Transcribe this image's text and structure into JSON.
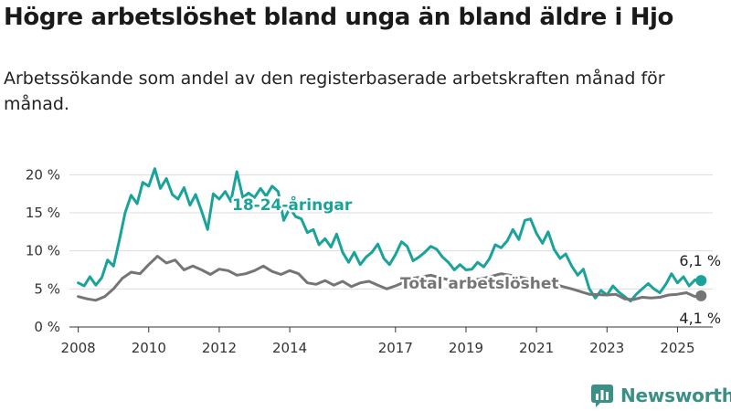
{
  "header": {
    "title": "Högre arbetslöshet bland unga än bland äldre i Hjo",
    "subtitle": "Arbetssökande som andel av den registerbaserade arbetskraften månad för månad."
  },
  "brand": {
    "name": "Newsworthy",
    "icon": "newsworthy-logo-icon"
  },
  "chart_data": {
    "type": "line",
    "title": "Högre arbetslöshet bland unga än bland äldre i Hjo",
    "ylim": [
      0,
      21
    ],
    "xlim": [
      2007.75,
      2026.0
    ],
    "y_ticks": [
      0,
      5,
      10,
      15,
      20
    ],
    "y_tick_labels": [
      "0 %",
      "5 %",
      "10 %",
      "15 %",
      "20 %"
    ],
    "x_ticks": [
      2008,
      2010,
      2012,
      2014,
      2017,
      2019,
      2021,
      2023,
      2025
    ],
    "x_tick_labels": [
      "2008",
      "2010",
      "2012",
      "2014",
      "2017",
      "2019",
      "2021",
      "2023",
      "2025"
    ],
    "grid": "horizontal",
    "series": [
      {
        "name": "18-24-åringar",
        "color": "#1aa39a",
        "end_label": "6,1 %",
        "points": [
          [
            2008.0,
            5.8
          ],
          [
            2008.17,
            5.4
          ],
          [
            2008.33,
            6.6
          ],
          [
            2008.5,
            5.5
          ],
          [
            2008.67,
            6.5
          ],
          [
            2008.83,
            8.8
          ],
          [
            2009.0,
            8.0
          ],
          [
            2009.17,
            11.5
          ],
          [
            2009.33,
            15.0
          ],
          [
            2009.5,
            17.3
          ],
          [
            2009.67,
            16.2
          ],
          [
            2009.83,
            19.0
          ],
          [
            2010.0,
            18.5
          ],
          [
            2010.17,
            20.8
          ],
          [
            2010.33,
            18.2
          ],
          [
            2010.5,
            19.5
          ],
          [
            2010.67,
            17.4
          ],
          [
            2010.83,
            16.8
          ],
          [
            2011.0,
            18.3
          ],
          [
            2011.17,
            16.0
          ],
          [
            2011.33,
            17.4
          ],
          [
            2011.5,
            15.2
          ],
          [
            2011.67,
            12.8
          ],
          [
            2011.83,
            17.5
          ],
          [
            2012.0,
            16.8
          ],
          [
            2012.17,
            17.8
          ],
          [
            2012.33,
            16.5
          ],
          [
            2012.5,
            20.4
          ],
          [
            2012.67,
            17.0
          ],
          [
            2012.83,
            17.6
          ],
          [
            2013.0,
            17.0
          ],
          [
            2013.17,
            18.2
          ],
          [
            2013.33,
            17.2
          ],
          [
            2013.5,
            18.5
          ],
          [
            2013.67,
            17.8
          ],
          [
            2013.83,
            14.0
          ],
          [
            2014.0,
            15.6
          ],
          [
            2014.17,
            14.5
          ],
          [
            2014.33,
            14.2
          ],
          [
            2014.5,
            12.4
          ],
          [
            2014.67,
            12.8
          ],
          [
            2014.83,
            10.8
          ],
          [
            2015.0,
            11.6
          ],
          [
            2015.17,
            10.5
          ],
          [
            2015.33,
            12.2
          ],
          [
            2015.5,
            9.8
          ],
          [
            2015.67,
            8.5
          ],
          [
            2015.83,
            9.8
          ],
          [
            2016.0,
            8.2
          ],
          [
            2016.17,
            9.2
          ],
          [
            2016.33,
            9.8
          ],
          [
            2016.5,
            10.9
          ],
          [
            2016.67,
            9.0
          ],
          [
            2016.83,
            8.2
          ],
          [
            2017.0,
            9.5
          ],
          [
            2017.17,
            11.2
          ],
          [
            2017.33,
            10.6
          ],
          [
            2017.5,
            8.7
          ],
          [
            2017.67,
            9.2
          ],
          [
            2017.83,
            9.8
          ],
          [
            2018.0,
            10.6
          ],
          [
            2018.17,
            10.2
          ],
          [
            2018.33,
            9.2
          ],
          [
            2018.5,
            8.5
          ],
          [
            2018.67,
            7.5
          ],
          [
            2018.83,
            8.2
          ],
          [
            2019.0,
            7.5
          ],
          [
            2019.17,
            7.6
          ],
          [
            2019.33,
            8.5
          ],
          [
            2019.5,
            7.9
          ],
          [
            2019.67,
            9.0
          ],
          [
            2019.83,
            10.8
          ],
          [
            2020.0,
            10.4
          ],
          [
            2020.17,
            11.3
          ],
          [
            2020.33,
            12.8
          ],
          [
            2020.5,
            11.5
          ],
          [
            2020.67,
            14.0
          ],
          [
            2020.83,
            14.2
          ],
          [
            2021.0,
            12.3
          ],
          [
            2021.17,
            11.0
          ],
          [
            2021.33,
            12.5
          ],
          [
            2021.5,
            10.2
          ],
          [
            2021.67,
            9.0
          ],
          [
            2021.83,
            9.6
          ],
          [
            2022.0,
            8.0
          ],
          [
            2022.17,
            6.8
          ],
          [
            2022.33,
            7.6
          ],
          [
            2022.5,
            5.0
          ],
          [
            2022.67,
            3.8
          ],
          [
            2022.83,
            4.8
          ],
          [
            2023.0,
            4.2
          ],
          [
            2023.17,
            5.4
          ],
          [
            2023.33,
            4.6
          ],
          [
            2023.5,
            4.0
          ],
          [
            2023.67,
            3.4
          ],
          [
            2023.83,
            4.3
          ],
          [
            2024.0,
            5.0
          ],
          [
            2024.17,
            5.7
          ],
          [
            2024.33,
            5.0
          ],
          [
            2024.5,
            4.5
          ],
          [
            2024.67,
            5.6
          ],
          [
            2024.83,
            7.0
          ],
          [
            2025.0,
            5.8
          ],
          [
            2025.17,
            6.6
          ],
          [
            2025.33,
            5.4
          ],
          [
            2025.5,
            6.2
          ],
          [
            2025.67,
            6.1
          ]
        ]
      },
      {
        "name": "Total arbetslöshet",
        "color": "#757575",
        "end_label": "4,1 %",
        "points": [
          [
            2008.0,
            4.0
          ],
          [
            2008.25,
            3.7
          ],
          [
            2008.5,
            3.5
          ],
          [
            2008.75,
            4.0
          ],
          [
            2009.0,
            5.0
          ],
          [
            2009.25,
            6.4
          ],
          [
            2009.5,
            7.2
          ],
          [
            2009.75,
            7.0
          ],
          [
            2010.0,
            8.2
          ],
          [
            2010.25,
            9.3
          ],
          [
            2010.5,
            8.4
          ],
          [
            2010.75,
            8.8
          ],
          [
            2011.0,
            7.5
          ],
          [
            2011.25,
            8.0
          ],
          [
            2011.5,
            7.5
          ],
          [
            2011.75,
            6.9
          ],
          [
            2012.0,
            7.6
          ],
          [
            2012.25,
            7.4
          ],
          [
            2012.5,
            6.8
          ],
          [
            2012.75,
            7.0
          ],
          [
            2013.0,
            7.4
          ],
          [
            2013.25,
            8.0
          ],
          [
            2013.5,
            7.3
          ],
          [
            2013.75,
            6.9
          ],
          [
            2014.0,
            7.4
          ],
          [
            2014.25,
            7.0
          ],
          [
            2014.5,
            5.8
          ],
          [
            2014.75,
            5.6
          ],
          [
            2015.0,
            6.1
          ],
          [
            2015.25,
            5.5
          ],
          [
            2015.5,
            6.0
          ],
          [
            2015.75,
            5.3
          ],
          [
            2016.0,
            5.8
          ],
          [
            2016.25,
            6.0
          ],
          [
            2016.5,
            5.5
          ],
          [
            2016.75,
            5.0
          ],
          [
            2017.0,
            5.4
          ],
          [
            2017.5,
            6.4
          ],
          [
            2018.0,
            6.8
          ],
          [
            2018.5,
            6.2
          ],
          [
            2019.0,
            6.0
          ],
          [
            2019.5,
            6.4
          ],
          [
            2020.0,
            7.0
          ],
          [
            2020.5,
            6.6
          ],
          [
            2021.0,
            6.0
          ],
          [
            2021.5,
            5.6
          ],
          [
            2022.0,
            5.0
          ],
          [
            2022.5,
            4.3
          ],
          [
            2023.0,
            4.2
          ],
          [
            2023.25,
            4.3
          ],
          [
            2023.5,
            3.7
          ],
          [
            2023.75,
            3.6
          ],
          [
            2024.0,
            3.9
          ],
          [
            2024.25,
            3.8
          ],
          [
            2024.5,
            3.9
          ],
          [
            2024.75,
            4.2
          ],
          [
            2025.0,
            4.3
          ],
          [
            2025.25,
            4.5
          ],
          [
            2025.5,
            4.0
          ],
          [
            2025.67,
            4.1
          ]
        ]
      }
    ]
  }
}
